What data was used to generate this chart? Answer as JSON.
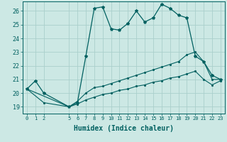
{
  "xlabel": "Humidex (Indice chaleur)",
  "bg_color": "#cce8e4",
  "grid_color": "#aacfcc",
  "line_color": "#006060",
  "xlim": [
    -0.5,
    23.5
  ],
  "ylim": [
    18.5,
    26.7
  ],
  "xticks": [
    0,
    1,
    2,
    5,
    6,
    7,
    8,
    9,
    10,
    11,
    12,
    13,
    14,
    15,
    16,
    17,
    18,
    19,
    20,
    21,
    22,
    23
  ],
  "yticks": [
    19,
    20,
    21,
    22,
    23,
    24,
    25,
    26
  ],
  "series1_x": [
    0,
    1,
    2,
    5,
    6,
    7,
    8,
    9,
    10,
    11,
    12,
    13,
    14,
    15,
    16,
    17,
    18,
    19,
    20,
    21,
    22,
    23
  ],
  "series1_y": [
    20.3,
    20.9,
    20.0,
    19.0,
    19.3,
    22.7,
    26.2,
    26.3,
    24.7,
    24.6,
    25.1,
    26.0,
    25.2,
    25.5,
    26.5,
    26.2,
    25.7,
    25.5,
    22.7,
    22.3,
    21.3,
    21.0
  ],
  "series2_x": [
    0,
    5,
    6,
    7,
    8,
    9,
    10,
    11,
    12,
    13,
    14,
    15,
    16,
    17,
    18,
    19,
    20,
    21,
    22,
    23
  ],
  "series2_y": [
    20.3,
    19.0,
    19.4,
    20.0,
    20.4,
    20.5,
    20.7,
    20.9,
    21.1,
    21.3,
    21.5,
    21.7,
    21.9,
    22.1,
    22.3,
    22.8,
    23.0,
    22.3,
    21.0,
    21.0
  ],
  "series3_x": [
    0,
    2,
    5,
    6,
    7,
    8,
    9,
    10,
    11,
    12,
    13,
    14,
    15,
    16,
    17,
    18,
    19,
    20,
    21,
    22,
    23
  ],
  "series3_y": [
    20.3,
    19.3,
    19.0,
    19.2,
    19.5,
    19.7,
    19.9,
    20.0,
    20.2,
    20.3,
    20.5,
    20.6,
    20.8,
    20.9,
    21.1,
    21.2,
    21.4,
    21.6,
    21.0,
    20.6,
    20.9
  ]
}
